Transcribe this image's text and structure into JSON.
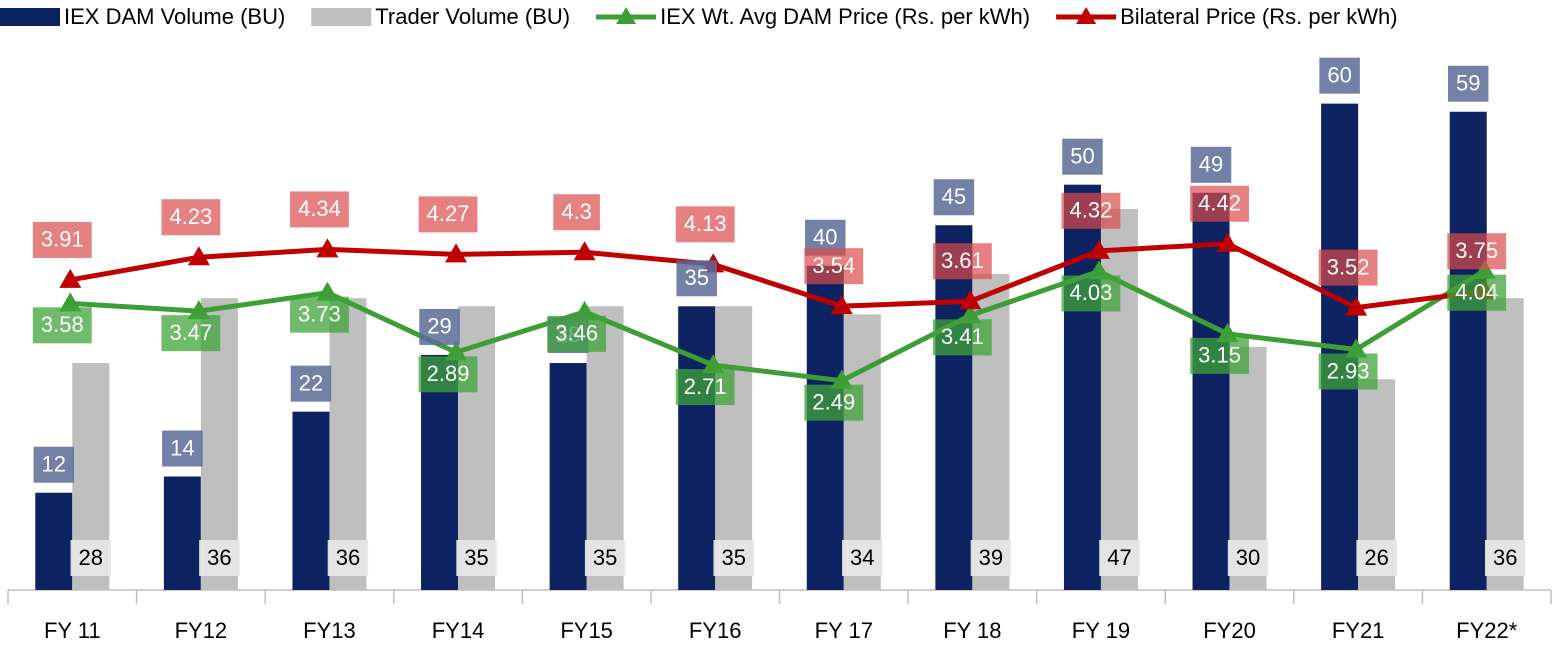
{
  "chart_data": {
    "type": "bar",
    "categories": [
      "FY 11",
      "FY12",
      "FY13",
      "FY14",
      "FY15",
      "FY16",
      "FY 17",
      "FY 18",
      "FY 19",
      "FY20",
      "FY21",
      "FY22*"
    ],
    "series": [
      {
        "name": "IEX DAM Volume (BU)",
        "color": "#0d2260",
        "values": [
          12,
          14,
          22,
          29,
          28,
          35,
          40,
          45,
          50,
          49,
          60,
          59
        ]
      },
      {
        "name": "Trader Volume (BU)",
        "color": "#bfbfbf",
        "values": [
          28,
          36,
          36,
          35,
          35,
          35,
          34,
          39,
          47,
          30,
          26,
          36
        ]
      },
      {
        "name": "IEX Wt. Avg DAM Price (Rs. per kWh)",
        "color": "#3d9e35",
        "type": "line",
        "axis": "y2",
        "values": [
          3.58,
          3.47,
          3.73,
          2.89,
          3.46,
          2.71,
          2.49,
          3.41,
          4.03,
          3.15,
          2.93,
          4.04
        ]
      },
      {
        "name": "Bilateral Price (Rs. per kWh)",
        "color": "#c00000",
        "type": "line",
        "axis": "y2",
        "values": [
          3.91,
          4.23,
          4.34,
          4.27,
          4.3,
          4.13,
          3.54,
          3.61,
          4.32,
          4.42,
          3.52,
          3.75
        ]
      }
    ],
    "ylim": [
      0,
      66
    ],
    "y2lim": [
      -0.46,
      7.08
    ],
    "legend": "top"
  }
}
